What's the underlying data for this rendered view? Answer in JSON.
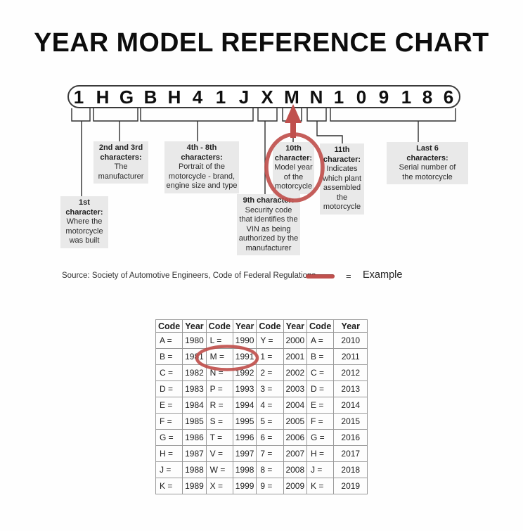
{
  "title": "YEAR MODEL REFERENCE CHART",
  "vin": {
    "value": "1HGBH41JXMN109186",
    "characters": [
      "1",
      "H",
      "G",
      "B",
      "H",
      "4",
      "1",
      "J",
      "X",
      "M",
      "N",
      "1",
      "0",
      "9",
      "1",
      "8",
      "6"
    ]
  },
  "callouts": [
    {
      "id": "1st-character",
      "title": "1st\ncharacter:",
      "body": "Where the\nmotorcycle\nwas built"
    },
    {
      "id": "2nd-3rd",
      "title": "2nd and 3rd\ncharacters:",
      "body": "The\nmanufacturer"
    },
    {
      "id": "4th-8th",
      "title": "4th - 8th\ncharacters:",
      "body": "Portrait of the\nmotorcycle - brand,\nengine size and type"
    },
    {
      "id": "9th-character",
      "title": "9th character:",
      "body": "Security code\nthat identifies the\nVIN as being\nauthorized by the\nmanufacturer"
    },
    {
      "id": "10th-character",
      "title": "10th\ncharacter:",
      "body": "Model year\nof the\nmotorcycle"
    },
    {
      "id": "11th-character",
      "title": "11th\ncharacter:",
      "body": "Indicates\nwhich plant\nassembled\nthe\nmotorcycle"
    },
    {
      "id": "last-6",
      "title": "Last 6\ncharacters:",
      "body": "Serial number of\nthe motorcycle"
    }
  ],
  "source": {
    "text": "Source:  Society of Automotive Engineers, Code of Federal Regulations",
    "equals": "=",
    "example_label": "Example"
  },
  "icons": {
    "example_arrow": "red-arrow-up-to-M",
    "example_circle_diagram": "red-circle-around-10th-character-box",
    "example_circle_table": "red-circle-around-M-1991"
  },
  "table": {
    "headers": [
      "Code",
      "Year",
      "Code",
      "Year",
      "Code",
      "Year",
      "Code",
      "Year"
    ],
    "rows": [
      [
        "A =",
        "1980",
        "L =",
        "1990",
        "Y =",
        "2000",
        "A =",
        "2010"
      ],
      [
        "B =",
        "1981",
        "M =",
        "1991",
        "1 =",
        "2001",
        "B =",
        "2011"
      ],
      [
        "C =",
        "1982",
        "N =",
        "1992",
        "2 =",
        "2002",
        "C =",
        "2012"
      ],
      [
        "D =",
        "1983",
        "P =",
        "1993",
        "3 =",
        "2003",
        "D =",
        "2013"
      ],
      [
        "E =",
        "1984",
        "R =",
        "1994",
        "4 =",
        "2004",
        "E =",
        "2014"
      ],
      [
        "F =",
        "1985",
        "S =",
        "1995",
        "5 =",
        "2005",
        "F =",
        "2015"
      ],
      [
        "G =",
        "1986",
        "T =",
        "1996",
        "6 =",
        "2006",
        "G =",
        "2016"
      ],
      [
        "H =",
        "1987",
        "V =",
        "1997",
        "7 =",
        "2007",
        "H =",
        "2017"
      ],
      [
        "J =",
        "1988",
        "W =",
        "1998",
        "8 =",
        "2008",
        "J =",
        "2018"
      ],
      [
        "K =",
        "1989",
        "X =",
        "1999",
        "9 =",
        "2009",
        "K =",
        "2019"
      ]
    ]
  },
  "colors": {
    "accent_red": "#c0504d",
    "callout_bg": "#e9e9e9"
  }
}
